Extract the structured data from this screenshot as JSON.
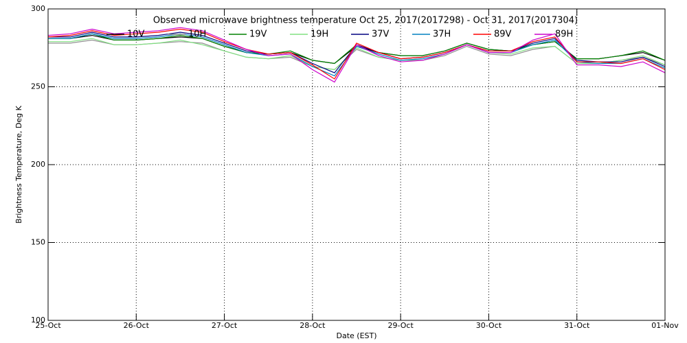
{
  "chart_data": {
    "type": "line",
    "title": "Observed microwave brightness temperature Oct 25, 2017(2017298) - Oct 31, 2017(2017304)",
    "x_label": "Date (EST)",
    "y_label": "Brightness Temperature, Deg K",
    "categories": [
      "25-Oct",
      null,
      null,
      null,
      "26-Oct",
      null,
      null,
      null,
      "27-Oct",
      null,
      null,
      null,
      "28-Oct",
      null,
      null,
      null,
      "29-Oct",
      null,
      null,
      null,
      "30-Oct",
      null,
      null,
      null,
      "31-Oct",
      null,
      null,
      null,
      "01-Nov"
    ],
    "ylim": [
      100,
      300
    ],
    "yticks": [
      100,
      150,
      200,
      250,
      300
    ],
    "grid": true,
    "series": [
      {
        "name": "10V",
        "color": "#000000",
        "values": [
          281,
          281,
          283,
          280,
          280,
          281,
          282,
          281,
          276,
          272,
          271,
          272,
          267,
          265,
          276,
          272,
          270,
          270,
          273,
          278,
          274,
          273,
          277,
          279,
          268,
          268,
          270,
          272,
          267
        ]
      },
      {
        "name": "10H",
        "color": "#909090",
        "values": [
          278,
          278,
          280,
          277,
          277,
          278,
          279,
          278,
          273,
          269,
          268,
          269,
          263,
          261,
          274,
          269,
          267,
          267,
          270,
          276,
          271,
          270,
          274,
          276,
          265,
          265,
          267,
          269,
          264
        ]
      },
      {
        "name": "19V",
        "color": "#008000",
        "values": [
          281,
          281,
          284,
          280,
          280,
          281,
          283,
          281,
          276,
          272,
          271,
          273,
          267,
          265,
          277,
          272,
          270,
          270,
          273,
          278,
          274,
          273,
          277,
          279,
          268,
          268,
          270,
          273,
          267
        ]
      },
      {
        "name": "19H",
        "color": "#80e080",
        "values": [
          279,
          279,
          281,
          277,
          277,
          278,
          280,
          277,
          273,
          269,
          268,
          270,
          263,
          261,
          275,
          269,
          267,
          267,
          271,
          277,
          272,
          271,
          275,
          276,
          265,
          265,
          267,
          270,
          264
        ]
      },
      {
        "name": "37V",
        "color": "#000080",
        "values": [
          282,
          282,
          285,
          282,
          282,
          283,
          285,
          283,
          278,
          273,
          271,
          272,
          265,
          259,
          277,
          272,
          268,
          269,
          272,
          277,
          273,
          273,
          278,
          281,
          267,
          266,
          266,
          269,
          263
        ]
      },
      {
        "name": "37H",
        "color": "#0080c0",
        "values": [
          281,
          281,
          284,
          281,
          281,
          282,
          284,
          282,
          277,
          272,
          270,
          271,
          263,
          257,
          276,
          271,
          267,
          268,
          271,
          277,
          272,
          272,
          277,
          280,
          266,
          265,
          265,
          268,
          262
        ]
      },
      {
        "name": "89V",
        "color": "#ff0000",
        "values": [
          282,
          283,
          286,
          283,
          284,
          285,
          287,
          285,
          279,
          274,
          271,
          272,
          264,
          255,
          278,
          272,
          268,
          269,
          272,
          277,
          273,
          273,
          279,
          282,
          266,
          266,
          265,
          268,
          261
        ]
      },
      {
        "name": "89H",
        "color": "#cc00cc",
        "values": [
          283,
          284,
          287,
          284,
          285,
          286,
          288,
          286,
          280,
          274,
          270,
          271,
          261,
          253,
          277,
          270,
          266,
          267,
          271,
          277,
          272,
          272,
          280,
          284,
          264,
          264,
          263,
          266,
          259
        ]
      }
    ]
  }
}
